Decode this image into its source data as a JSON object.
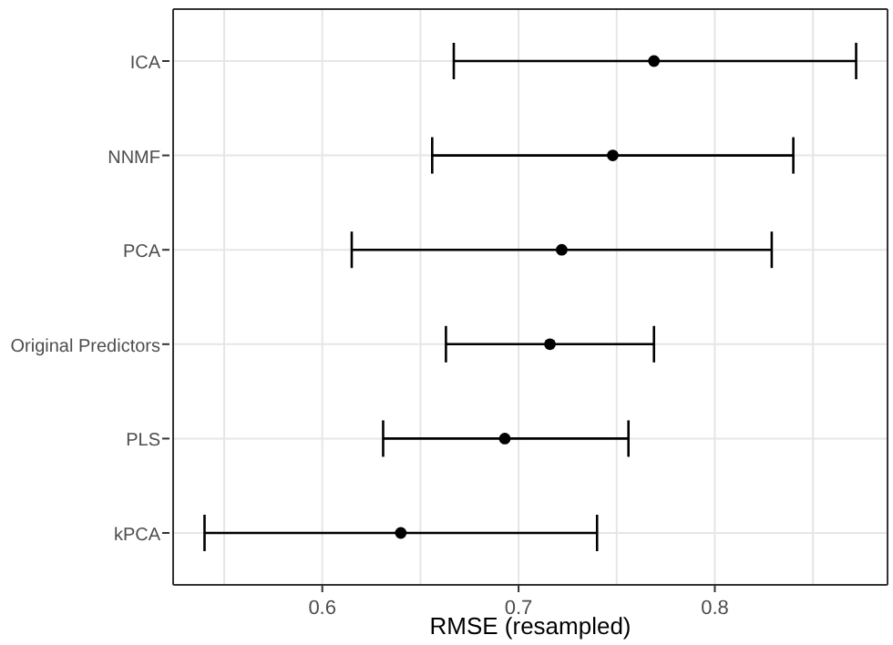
{
  "chart_data": {
    "type": "scatter",
    "orientation": "horizontal",
    "xlabel": "RMSE (resampled)",
    "categories": [
      "ICA",
      "NNMF",
      "PCA",
      "Original Predictors",
      "PLS",
      "kPCA"
    ],
    "values": [
      0.769,
      0.748,
      0.722,
      0.716,
      0.693,
      0.64
    ],
    "errors": [
      [
        0.667,
        0.872
      ],
      [
        0.656,
        0.84
      ],
      [
        0.615,
        0.829
      ],
      [
        0.663,
        0.769
      ],
      [
        0.631,
        0.756
      ],
      [
        0.54,
        0.74
      ]
    ],
    "color": "#000000",
    "xlim": [
      0.524,
      0.888
    ],
    "xticks": [
      {
        "value": 0.55,
        "label": null
      },
      0.6,
      {
        "value": 0.65,
        "label": null
      },
      0.7,
      {
        "value": 0.75,
        "label": null
      },
      0.8,
      {
        "value": 0.85,
        "label": null
      }
    ],
    "grid": true,
    "marker": "circle"
  }
}
